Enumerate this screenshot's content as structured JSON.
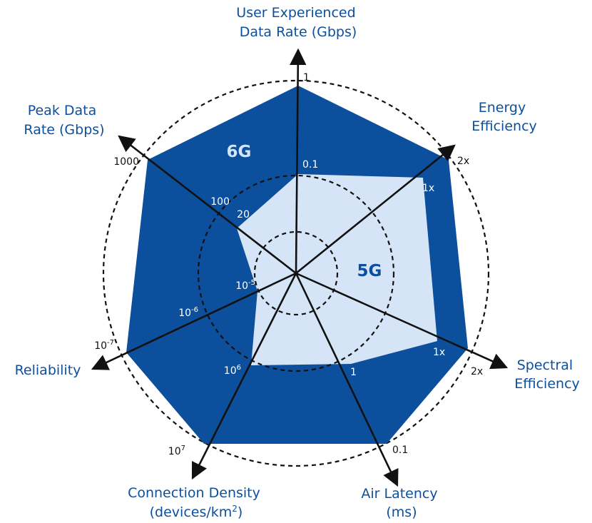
{
  "chart_data": {
    "type": "radar",
    "axes": [
      {
        "key": "udr",
        "title": [
          "User Experienced",
          "Data Rate (Gbps)"
        ],
        "ticks": {
          "5g": "0.1",
          "6g": "1"
        }
      },
      {
        "key": "ee",
        "title": [
          "Energy",
          "Efficiency"
        ],
        "ticks": {
          "5g": "1x",
          "6g": "2x"
        }
      },
      {
        "key": "se",
        "title": [
          "Spectral",
          "Efficiency"
        ],
        "ticks": {
          "5g": "1x",
          "6g": "2x"
        }
      },
      {
        "key": "lat",
        "title": [
          "Air Latency",
          "(ms)"
        ],
        "ticks": {
          "5g": "1",
          "6g": "0.1"
        }
      },
      {
        "key": "cd",
        "title": [
          "Connection Density",
          "(devices/km2)"
        ],
        "ticks": {
          "5g": "10^6",
          "6g": "10^7"
        }
      },
      {
        "key": "rel",
        "title": [
          "Reliability"
        ],
        "ticks": {
          "5g": "10^-5",
          "mid": "10^-6",
          "6g": "10^-7"
        }
      },
      {
        "key": "pdr",
        "title": [
          "Peak Data",
          "Rate (Gbps)"
        ],
        "ticks": {
          "5g": "20",
          "mid": "100",
          "6g": "1000"
        }
      }
    ],
    "series": [
      {
        "name": "6G",
        "color": "#0c4f9c",
        "values": {
          "udr": 1,
          "ee": 2,
          "se": 2,
          "lat": 0.1,
          "cd": 10000000,
          "rel": 1e-07,
          "pdr": 1000
        }
      },
      {
        "name": "5G",
        "color": "#d6e4f7",
        "values": {
          "udr": 0.1,
          "ee": 1,
          "se": 1,
          "lat": 1,
          "cd": 1000000,
          "rel": 1e-05,
          "pdr": 20
        }
      }
    ],
    "grid": "dashed circles"
  }
}
